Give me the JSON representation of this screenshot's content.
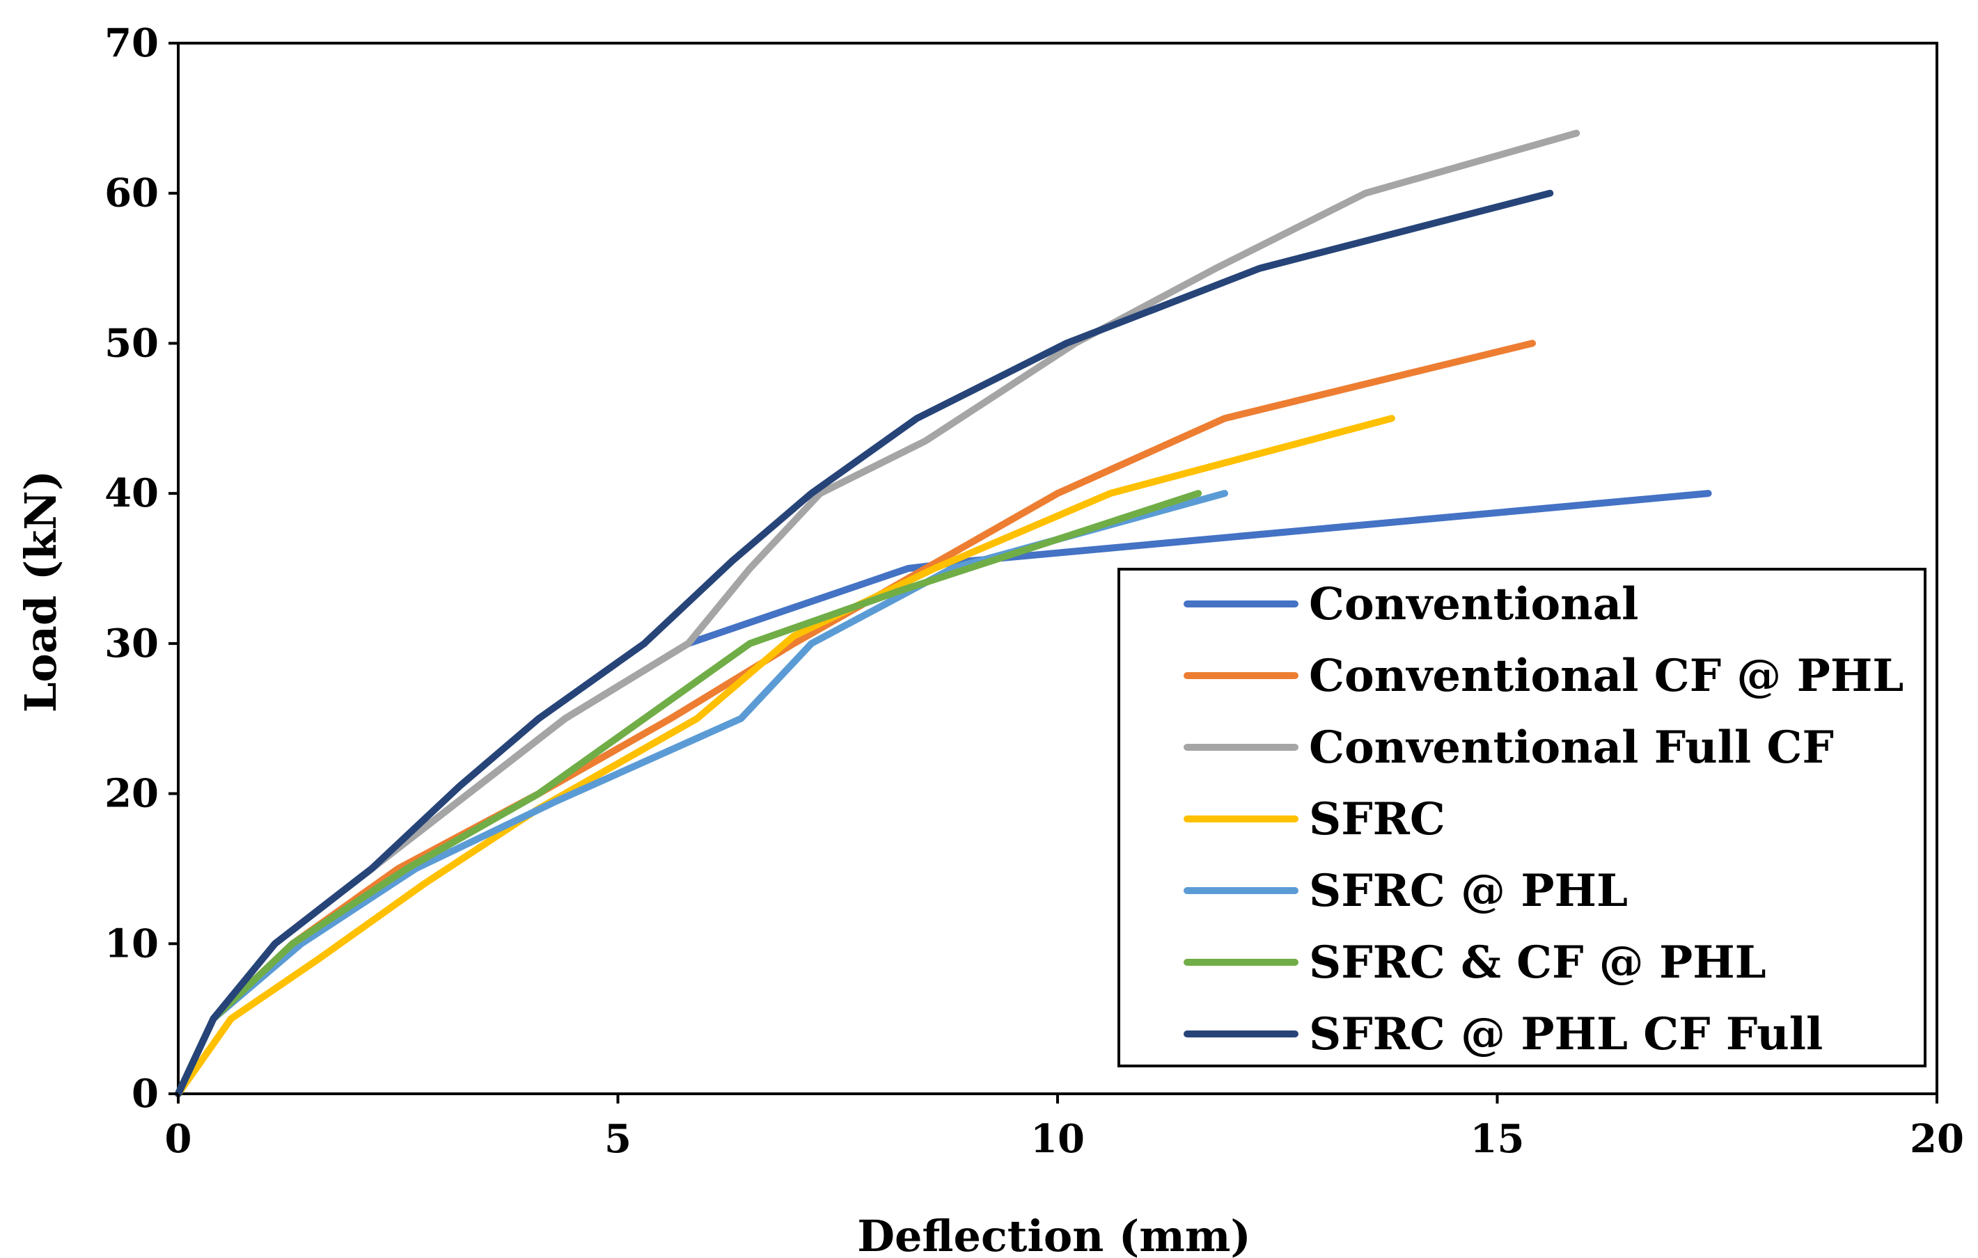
{
  "chart_data": {
    "type": "line",
    "title": "",
    "xlabel": "Deflection (mm)",
    "ylabel": "Load (kN)",
    "xlim": [
      0,
      20
    ],
    "ylim": [
      0,
      70
    ],
    "xticks": [
      0,
      5,
      10,
      15,
      20
    ],
    "yticks": [
      0,
      10,
      20,
      30,
      40,
      50,
      60,
      70
    ],
    "grid": false,
    "legend_position": "bottom-right",
    "series": [
      {
        "name": "Conventional",
        "color": "#4472C4",
        "x": [
          0,
          0.4,
          1.1,
          2.2,
          3.3,
          4.4,
          5.8,
          8.3,
          9.0,
          17.4
        ],
        "y": [
          0,
          5,
          10,
          15,
          20,
          25,
          30,
          35,
          35.5,
          40
        ]
      },
      {
        "name": "Conventional CF @ PHL",
        "color": "#ED7D31",
        "x": [
          0,
          0.4,
          1.3,
          2.5,
          4.1,
          5.6,
          7.0,
          8.5,
          10.0,
          11.9,
          15.4
        ],
        "y": [
          0,
          5,
          10,
          15,
          20,
          25,
          30,
          35,
          40,
          45,
          50
        ]
      },
      {
        "name": "Conventional Full CF",
        "color": "#A5A5A5",
        "x": [
          0,
          0.4,
          1.1,
          2.2,
          3.3,
          4.4,
          5.8,
          6.5,
          7.3,
          8.5,
          10.2,
          11.8,
          13.5,
          15.9
        ],
        "y": [
          0,
          5,
          10,
          15,
          20,
          25,
          30,
          35,
          40,
          43.5,
          50,
          55,
          60,
          64
        ]
      },
      {
        "name": "SFRC",
        "color": "#FFC000",
        "x": [
          0,
          0.6,
          1.6,
          2.8,
          4.1,
          5.9,
          7.0,
          8.6,
          10.6,
          13.8
        ],
        "y": [
          0,
          5,
          9,
          14,
          19,
          25,
          30.5,
          35,
          40,
          45
        ]
      },
      {
        "name": "SFRC @ PHL",
        "color": "#5B9BD5",
        "x": [
          0,
          0.4,
          1.4,
          2.7,
          4.3,
          6.4,
          7.2,
          8.8,
          11.9
        ],
        "y": [
          0,
          5,
          10,
          15,
          19.5,
          25,
          30,
          35,
          40
        ]
      },
      {
        "name": "SFRC & CF @ PHL",
        "color": "#70AD47",
        "x": [
          0,
          0.4,
          1.3,
          2.6,
          4.1,
          5.3,
          6.5,
          8.2,
          11.6
        ],
        "y": [
          0,
          5,
          10,
          15,
          20,
          25,
          30,
          33.5,
          40
        ]
      },
      {
        "name": "SFRC @ PHL CF Full",
        "color": "#264478",
        "x": [
          0,
          0.4,
          1.1,
          2.2,
          3.2,
          4.1,
          5.3,
          6.3,
          7.2,
          8.4,
          10.1,
          12.3,
          15.6
        ],
        "y": [
          0,
          5,
          10,
          15,
          20.5,
          25,
          30,
          35.5,
          40,
          45,
          50,
          55,
          60
        ]
      }
    ]
  }
}
